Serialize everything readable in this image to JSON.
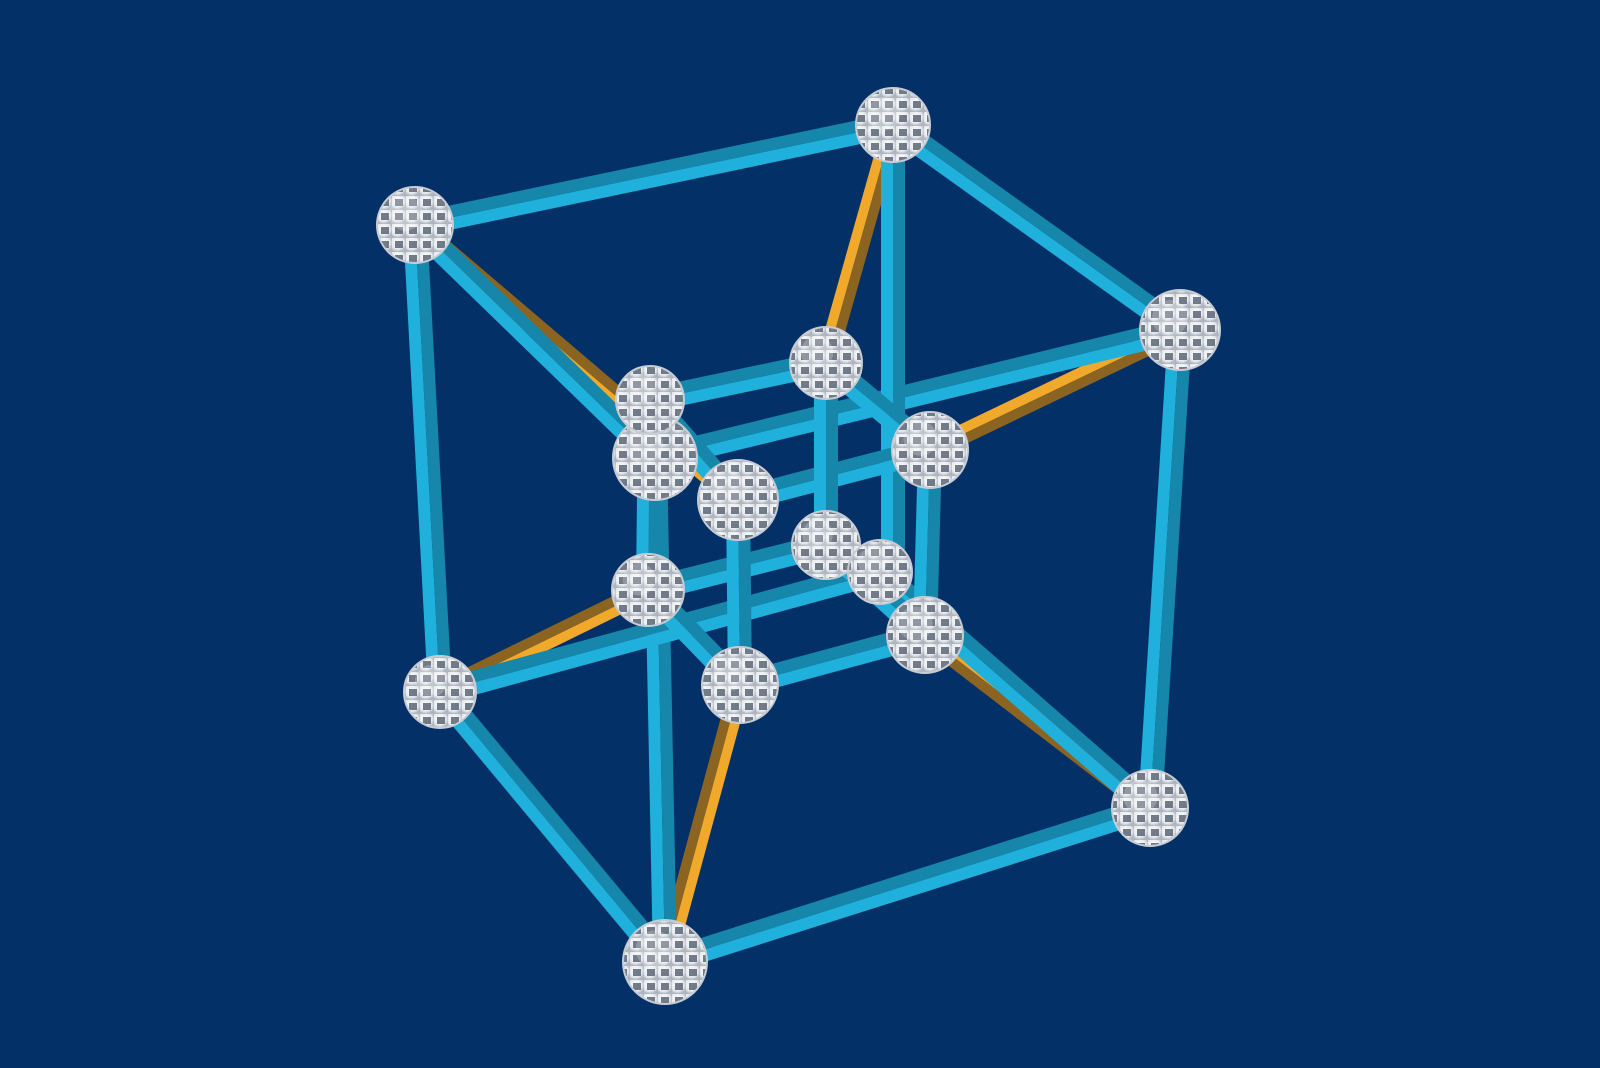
{
  "scene": {
    "subject": "tesseract",
    "colors": {
      "background": "#033067",
      "edge_blue": "#1fb0dc",
      "edge_blue_shade": "#1786ab",
      "edge_gold": "#f0a92a",
      "edge_gold_shade": "#8a6420",
      "node_white": "#f4f6f8",
      "node_shade": "#c7ccd3",
      "node_hole": "#5a6472"
    },
    "node_icon": "rhombicosidodecahedron-node-icon",
    "counts": {
      "vertices": 16,
      "blue_edges": 24,
      "gold_edges": 8
    }
  }
}
